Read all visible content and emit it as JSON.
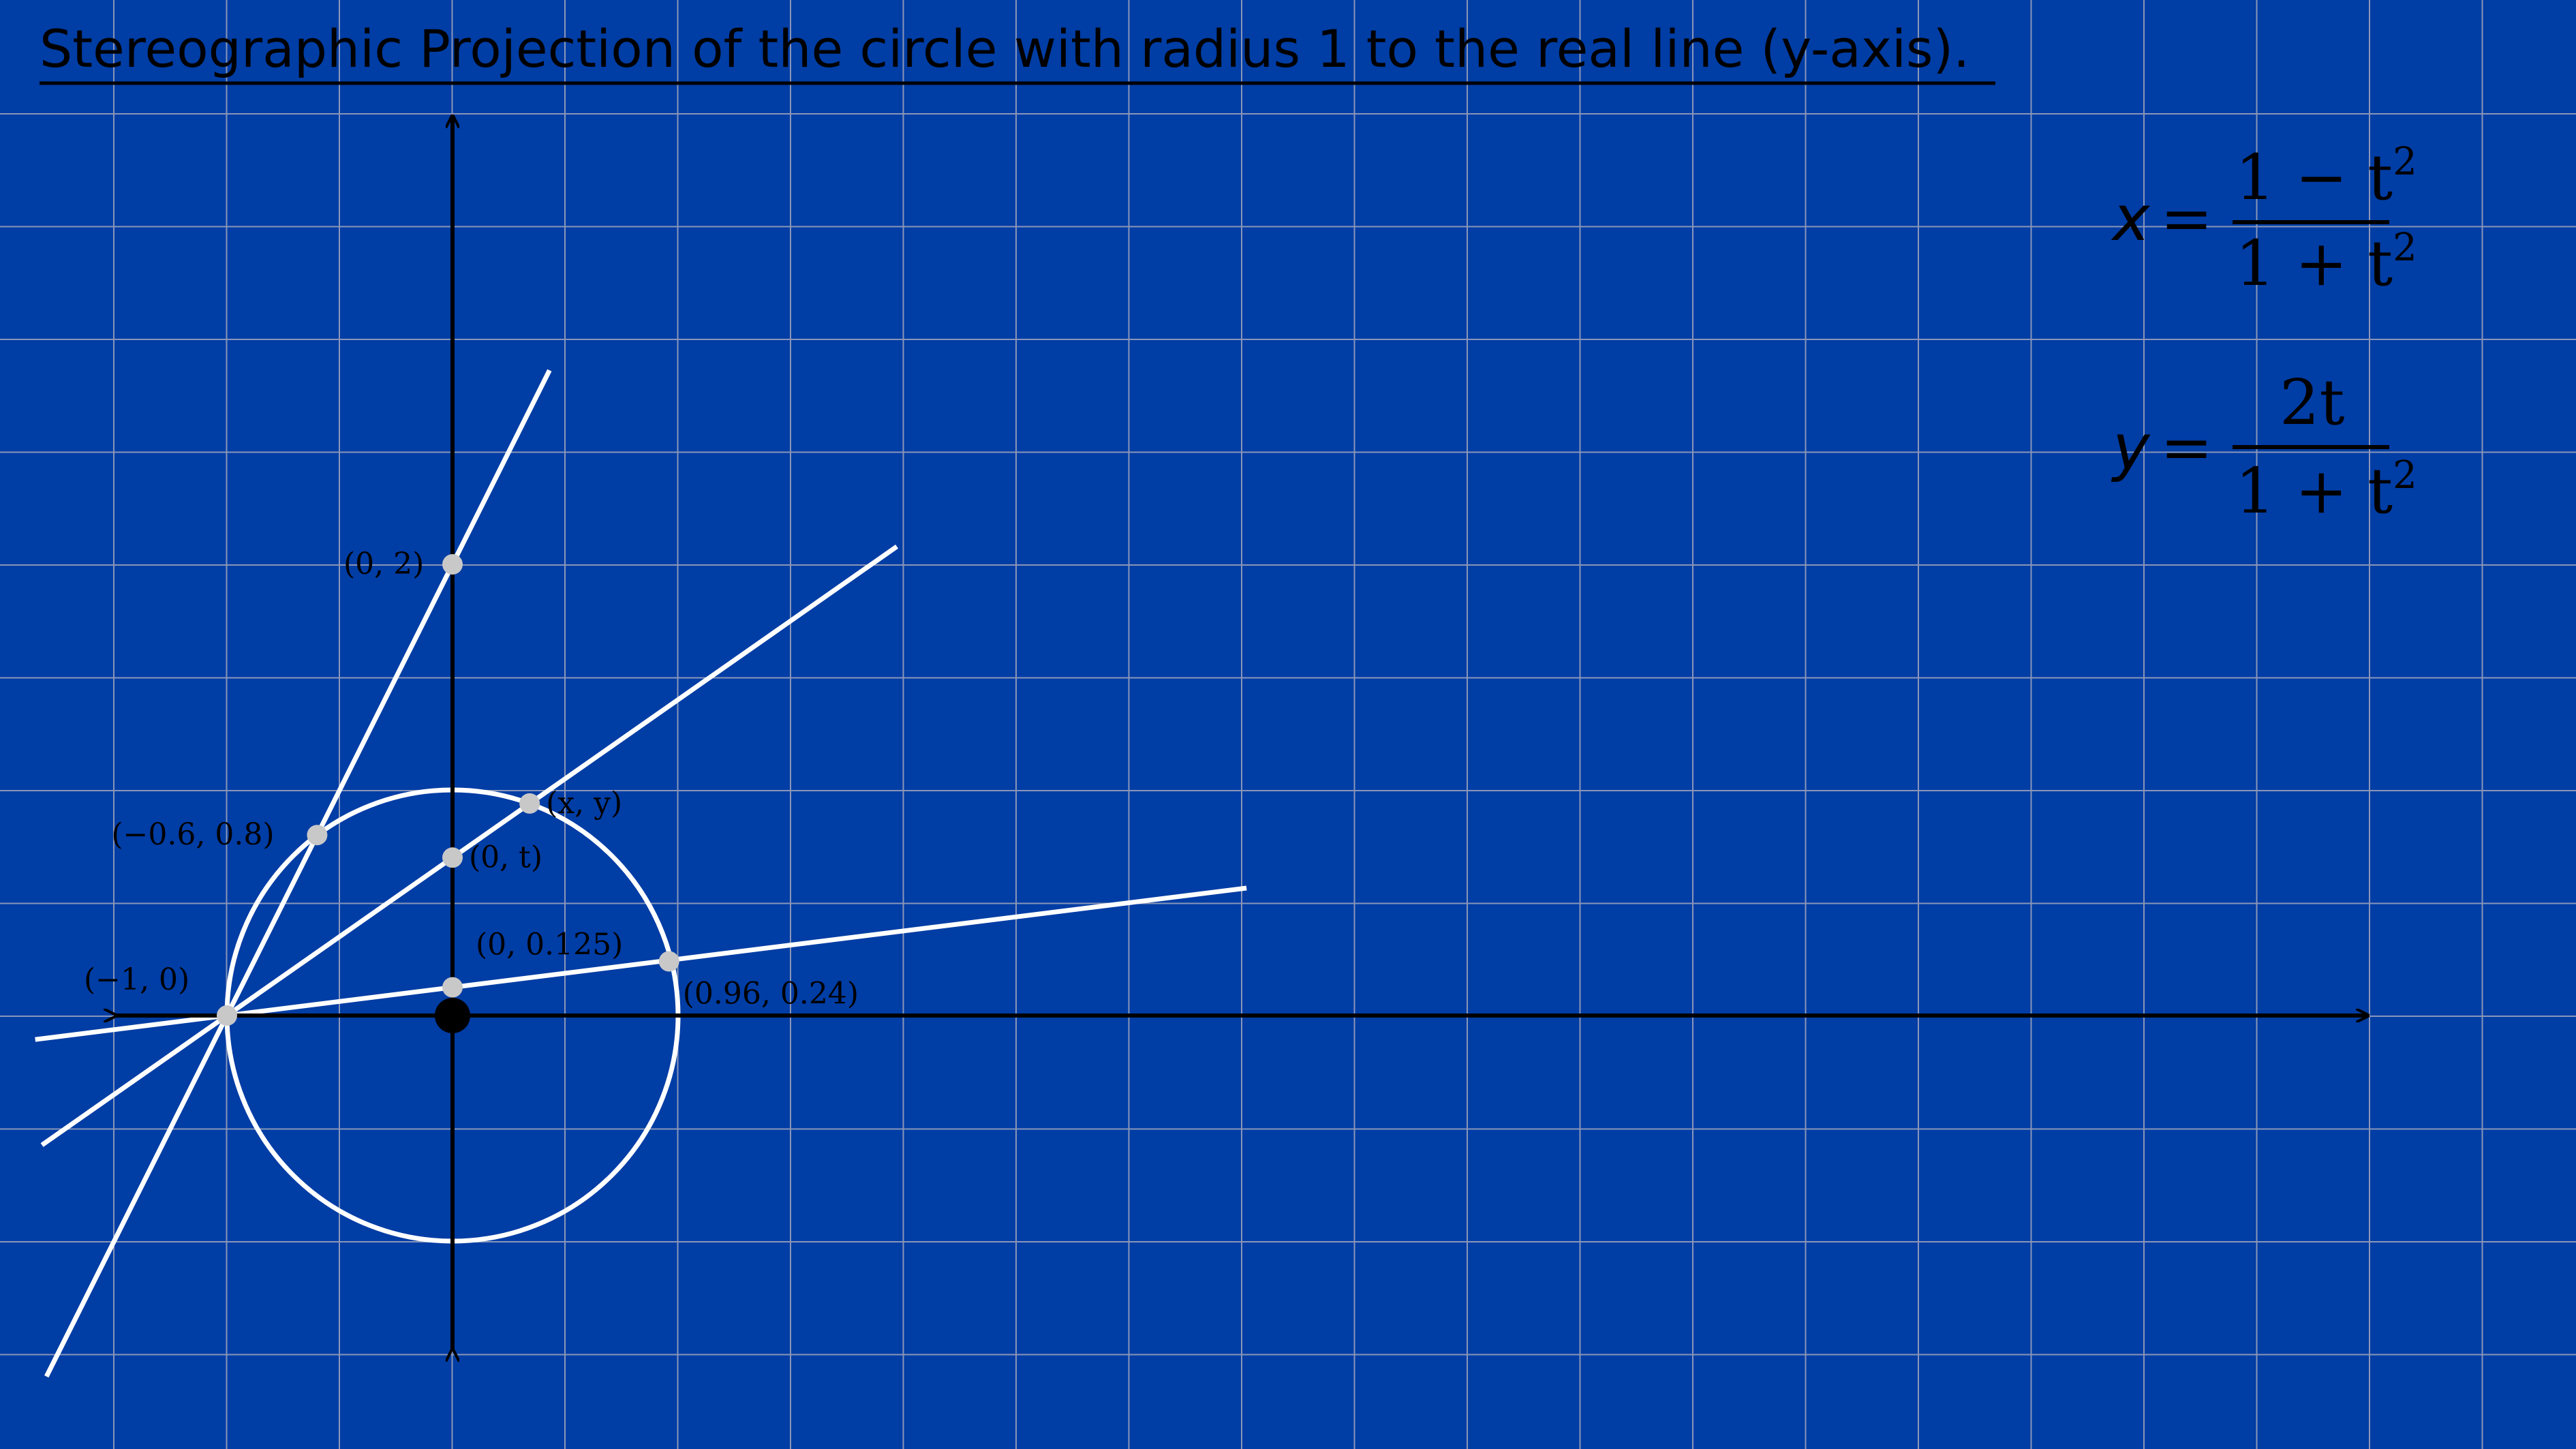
{
  "title": "Stereographic Projection of the circle with radius 1 to the real line (y-axis).",
  "colors": {
    "background": "#003da5",
    "grid": "#8a96b8",
    "lines": "#ffffff",
    "axes": "#000000",
    "points": "#c8c8c8"
  },
  "points": [
    {
      "id": "p-neg1-0",
      "x": -1,
      "y": 0,
      "label": "(−1, 0)"
    },
    {
      "id": "p-0-2",
      "x": 0,
      "y": 2,
      "label": "(0, 2)"
    },
    {
      "id": "p-neg06-08",
      "x": -0.6,
      "y": 0.8,
      "label": "(−0.6, 0.8)"
    },
    {
      "id": "p-x-y",
      "x": 0.342,
      "y": 0.94,
      "label": "(x, y)"
    },
    {
      "id": "p-0-t",
      "x": 0,
      "y": 0.7,
      "label": "(0, t)"
    },
    {
      "id": "p-0-0125",
      "x": 0,
      "y": 0.125,
      "label": "(0, 0.125)"
    },
    {
      "id": "p-096-024",
      "x": 0.96,
      "y": 0.24,
      "label": "(0.96, 0.24)"
    }
  ],
  "equations": {
    "x": {
      "lhs": "x",
      "eq": "=",
      "num": "1 − t",
      "den": "1 + t",
      "num_sup": "2",
      "den_sup": "2"
    },
    "y": {
      "lhs": "y",
      "eq": "=",
      "num": "2t",
      "den": "1 + t",
      "num_sup": "",
      "den_sup": "2"
    }
  }
}
